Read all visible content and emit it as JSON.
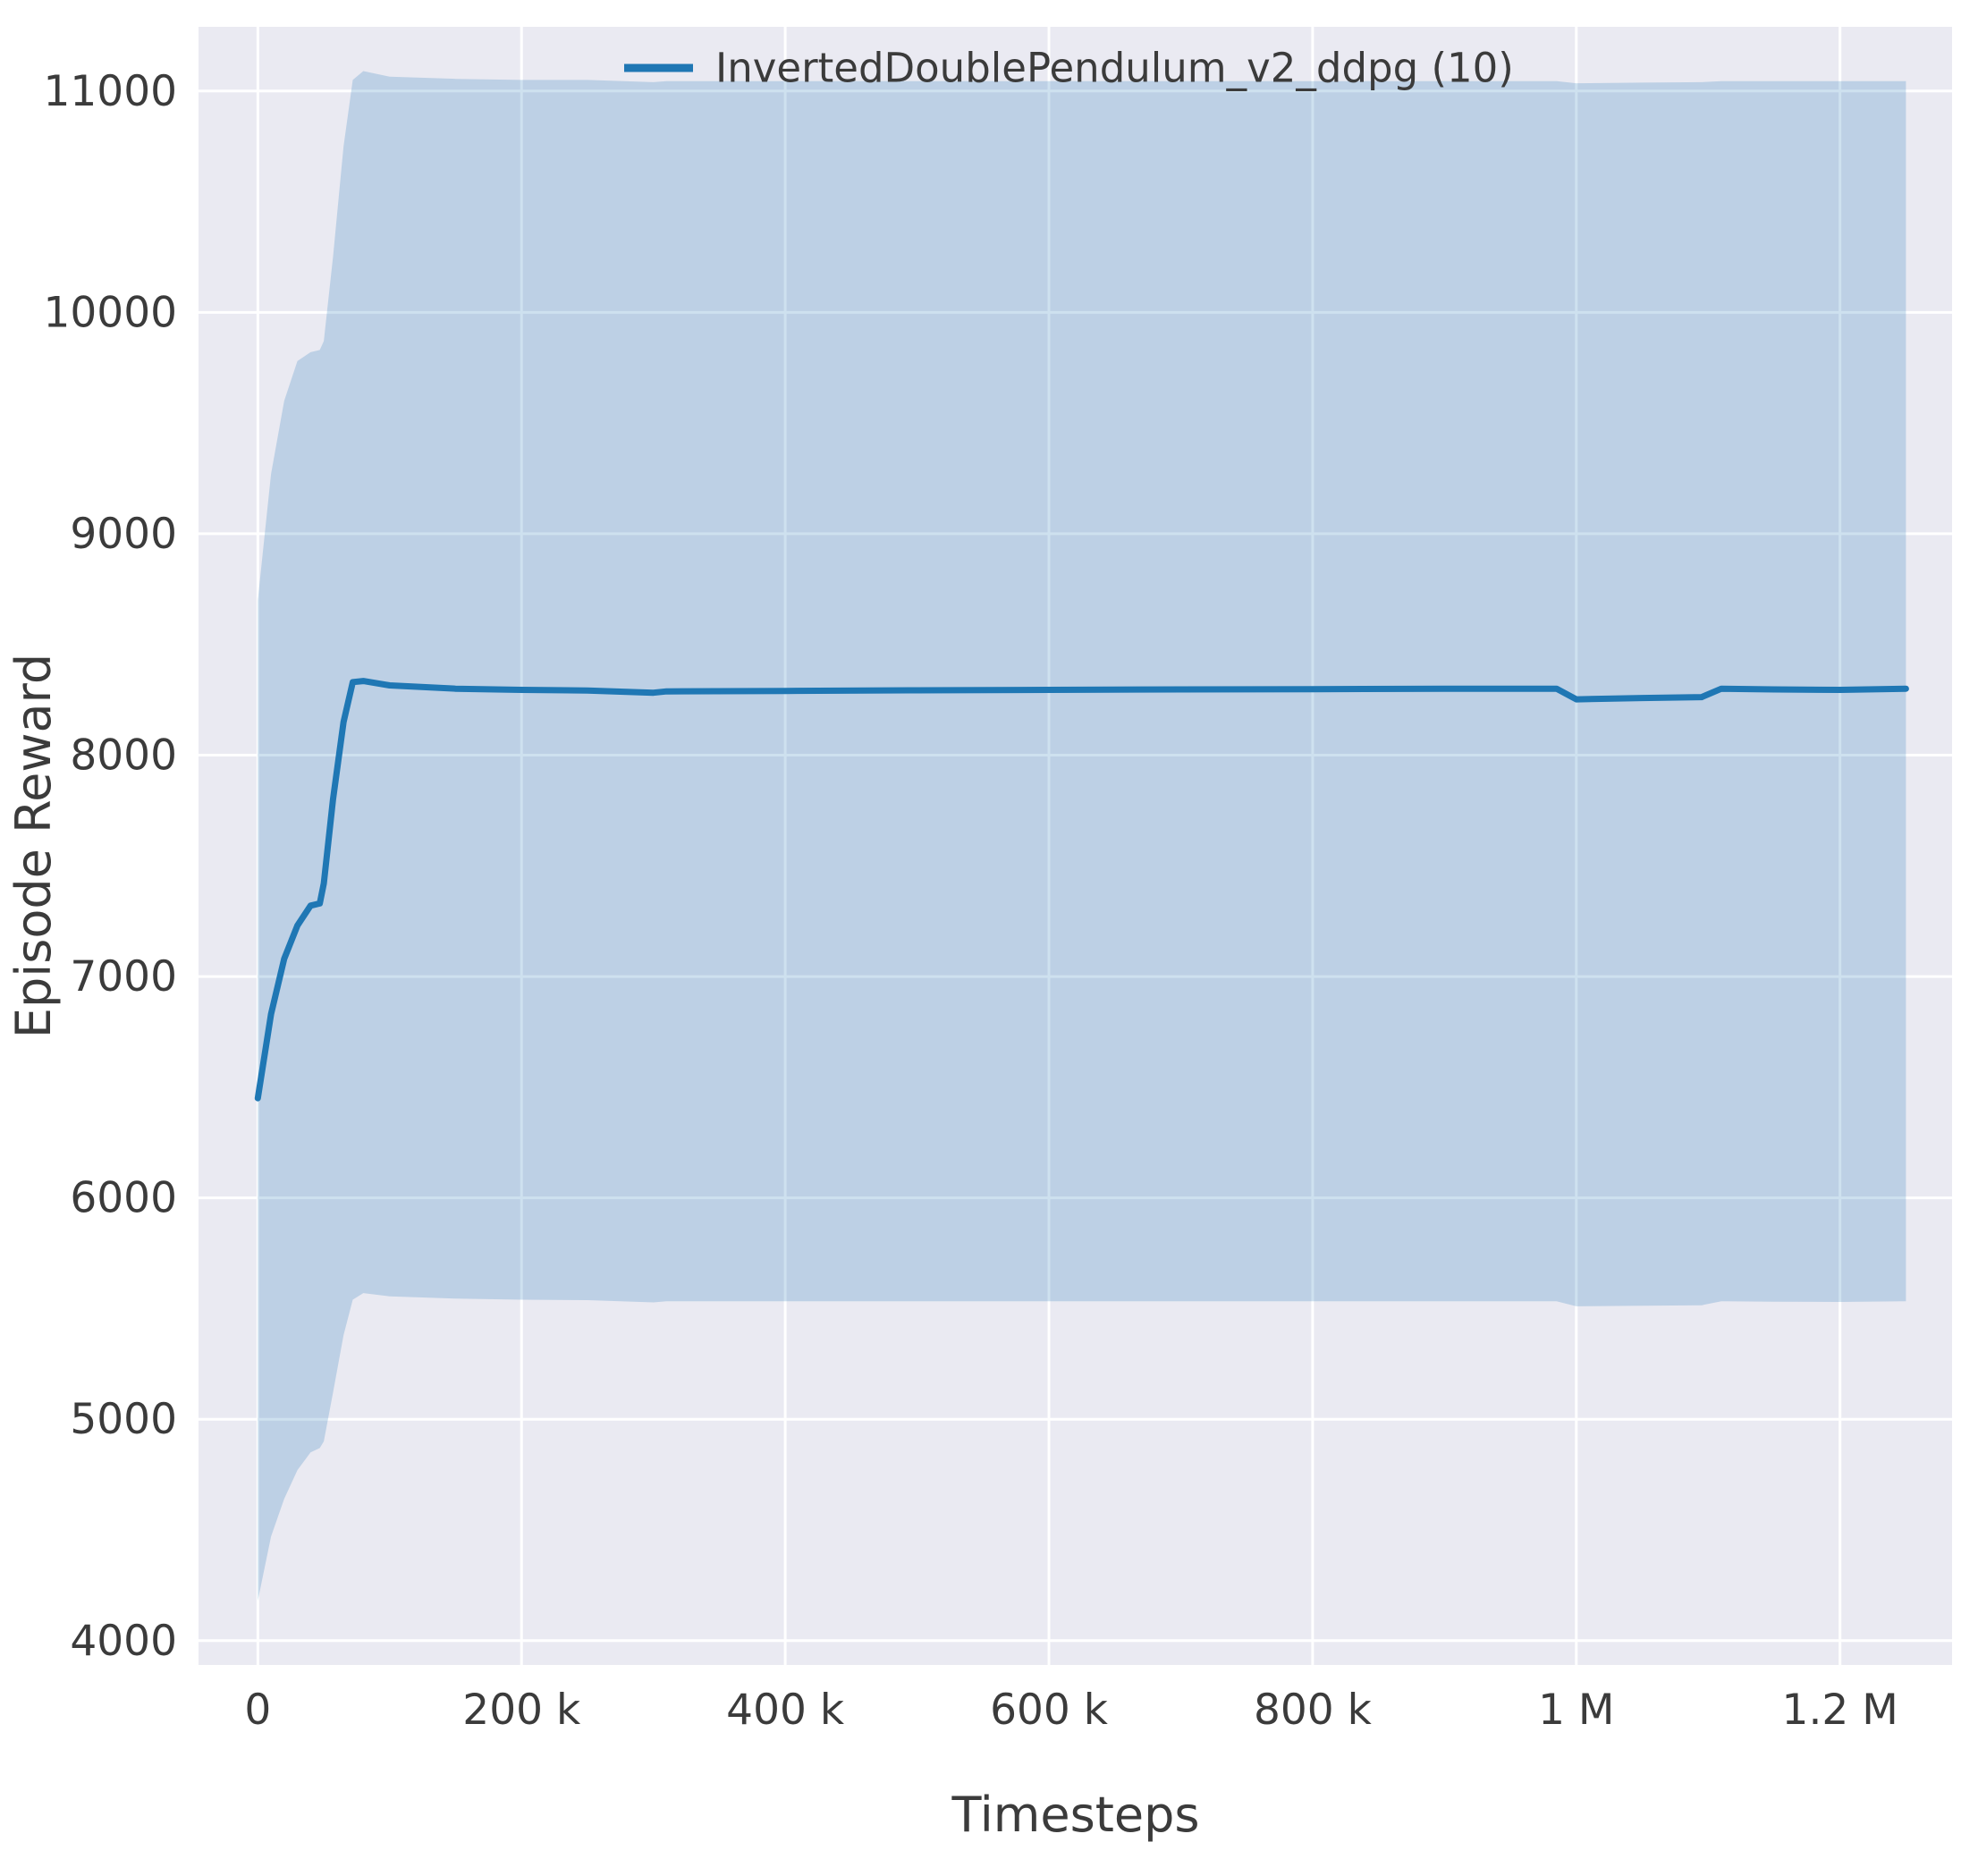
{
  "figure": {
    "background": "#ffffff",
    "plot_bg": "#eaeaf2",
    "grid_color": "#ffffff",
    "text_color": "#3b3b3b",
    "tick_color": "#3b3b3b"
  },
  "chart_data": {
    "type": "line",
    "title": "",
    "xlabel": "Timesteps",
    "ylabel": "Episode Reward",
    "legend_position": "upper center",
    "legend": [
      {
        "label": "InvertedDoublePendulum_v2_ddpg (10)",
        "color": "#1f77b4"
      }
    ],
    "xlim": [
      -45000,
      1285000
    ],
    "ylim": [
      3890,
      11290
    ],
    "grid": true,
    "x_ticks": [
      {
        "v": 0,
        "label": "0"
      },
      {
        "v": 200000,
        "label": "200 k"
      },
      {
        "v": 400000,
        "label": "400 k"
      },
      {
        "v": 600000,
        "label": "600 k"
      },
      {
        "v": 800000,
        "label": "800 k"
      },
      {
        "v": 1000000,
        "label": "1 M"
      },
      {
        "v": 1200000,
        "label": "1.2 M"
      }
    ],
    "y_ticks": [
      {
        "v": 4000,
        "label": "4000"
      },
      {
        "v": 5000,
        "label": "5000"
      },
      {
        "v": 6000,
        "label": "6000"
      },
      {
        "v": 7000,
        "label": "7000"
      },
      {
        "v": 8000,
        "label": "8000"
      },
      {
        "v": 9000,
        "label": "9000"
      },
      {
        "v": 10000,
        "label": "10000"
      },
      {
        "v": 11000,
        "label": "11000"
      }
    ],
    "series": [
      {
        "name": "InvertedDoublePendulum_v2_ddpg (10)",
        "color": "#1f77b4",
        "band_opacity": 0.22,
        "line_width": 7,
        "x": [
          0,
          10000,
          20000,
          30000,
          40000,
          47000,
          50000,
          57000,
          65000,
          72000,
          80000,
          100000,
          150000,
          200000,
          250000,
          300000,
          310000,
          400000,
          500000,
          600000,
          700000,
          800000,
          900000,
          985000,
          1000000,
          1050000,
          1095000,
          1110000,
          1150000,
          1200000,
          1250000
        ],
        "mean": [
          6450,
          6830,
          7080,
          7230,
          7320,
          7330,
          7420,
          7800,
          8150,
          8330,
          8335,
          8315,
          8300,
          8295,
          8292,
          8282,
          8288,
          8290,
          8293,
          8295,
          8297,
          8298,
          8300,
          8300,
          8252,
          8258,
          8262,
          8300,
          8297,
          8295,
          8300
        ],
        "upper": [
          8700,
          9270,
          9600,
          9780,
          9820,
          9830,
          9870,
          10250,
          10750,
          11050,
          11090,
          11065,
          11055,
          11050,
          11050,
          11040,
          11045,
          11045,
          11045,
          11045,
          11045,
          11045,
          11045,
          11045,
          11035,
          11038,
          11040,
          11045,
          11045,
          11045,
          11045
        ],
        "lower": [
          4180,
          4470,
          4640,
          4770,
          4850,
          4870,
          4900,
          5120,
          5380,
          5540,
          5570,
          5555,
          5545,
          5540,
          5538,
          5528,
          5533,
          5533,
          5533,
          5533,
          5533,
          5533,
          5533,
          5533,
          5510,
          5513,
          5515,
          5533,
          5531,
          5530,
          5533
        ]
      }
    ]
  }
}
